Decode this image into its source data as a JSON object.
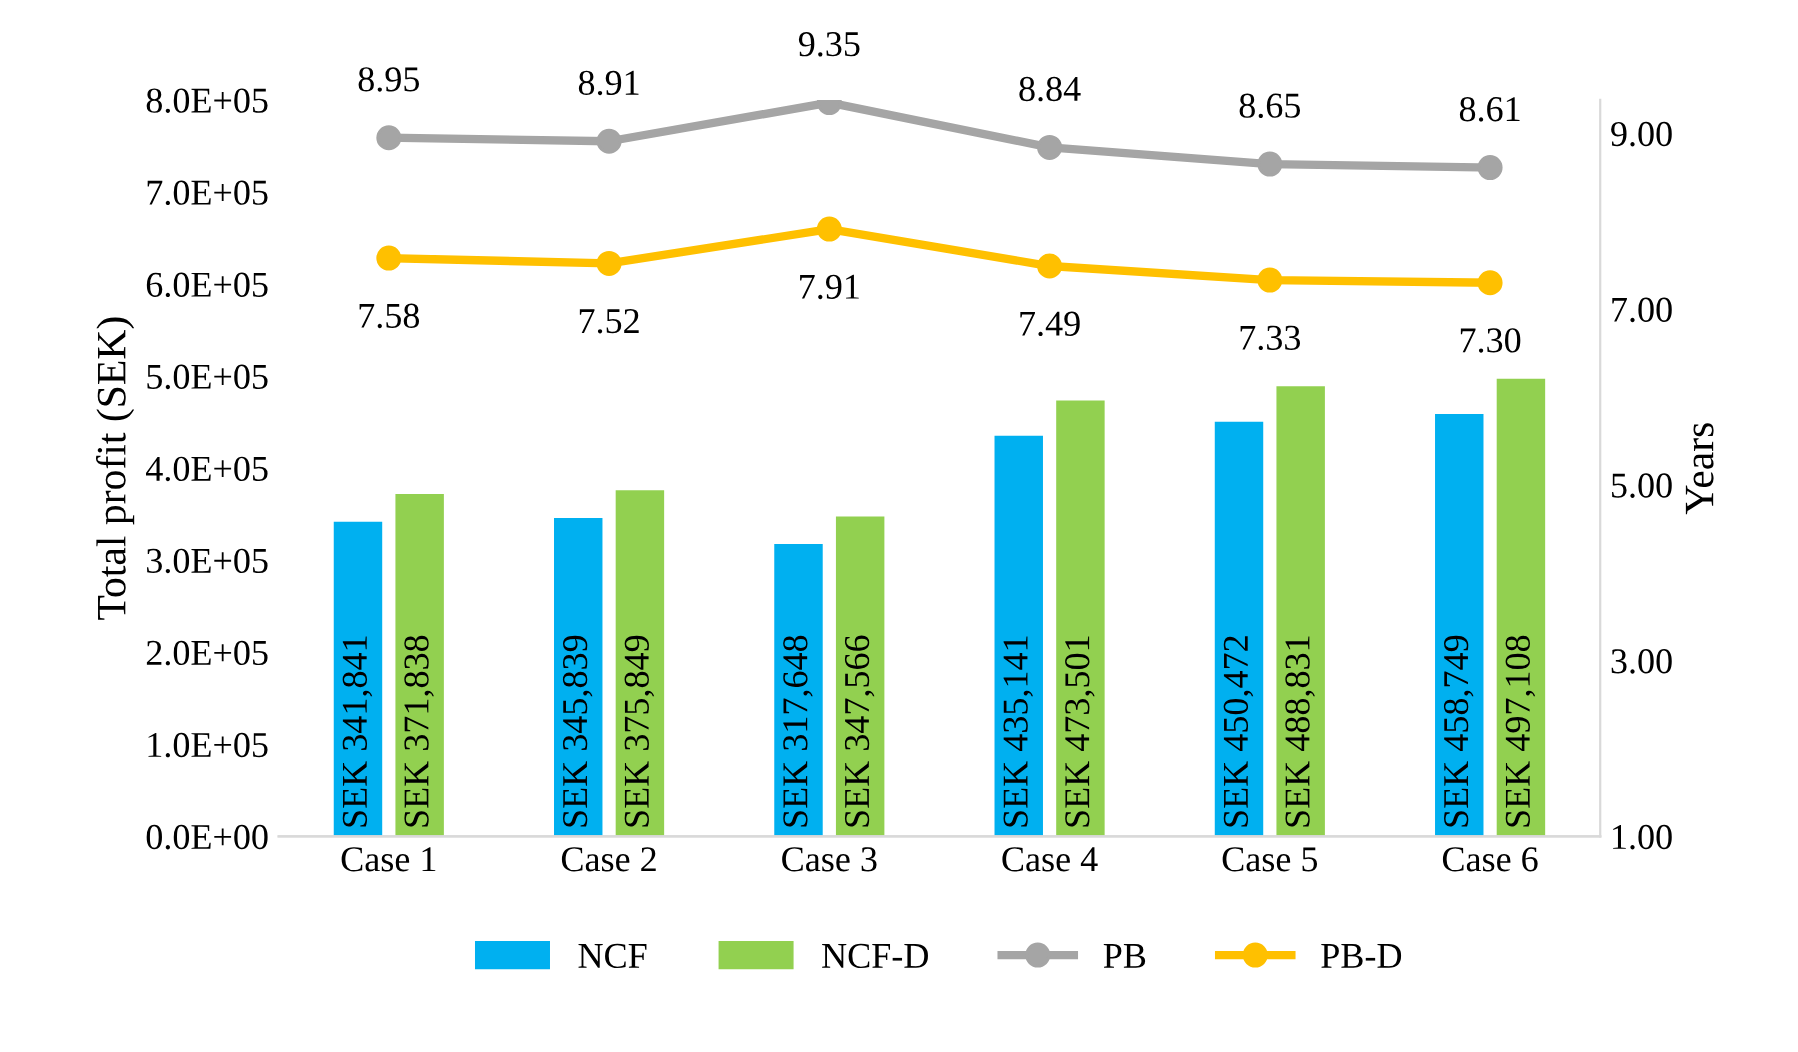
{
  "chart_data": {
    "type": "bar",
    "ylabel": "Total profit (SEK)",
    "y2label": "Years",
    "categories": [
      "Case 1",
      "Case 2",
      "Case 3",
      "Case 4",
      "Case 5",
      "Case 6"
    ],
    "series": [
      {
        "name": "NCF",
        "color": "#00b0f0",
        "values": [
          341841,
          345839,
          317648,
          435141,
          450472,
          458749
        ],
        "value_labels": [
          "SEK 341,841",
          "SEK 345,839",
          "SEK 317,648",
          "SEK 435,141",
          "SEK 450,472",
          "SEK 458,749"
        ]
      },
      {
        "name": "NCF-D",
        "color": "#92d050",
        "values": [
          371838,
          375849,
          347566,
          473501,
          488831,
          497108
        ],
        "value_labels": [
          "SEK 371,838",
          "SEK 375,849",
          "SEK 347,566",
          "SEK 473,501",
          "SEK 488,831",
          "SEK 497,108"
        ]
      },
      {
        "name": "PB",
        "type": "line",
        "axis": "y2",
        "color": "#a5a5a5",
        "values": [
          8.95,
          8.91,
          9.35,
          8.84,
          8.65,
          8.61
        ],
        "value_labels": [
          "8.95",
          "8.91",
          "9.35",
          "8.84",
          "8.65",
          "8.61"
        ]
      },
      {
        "name": "PB-D",
        "type": "line",
        "axis": "y2",
        "color": "#ffc000",
        "values": [
          7.58,
          7.52,
          7.91,
          7.49,
          7.33,
          7.3
        ],
        "value_labels": [
          "7.58",
          "7.52",
          "7.91",
          "7.49",
          "7.33",
          "7.30"
        ]
      }
    ],
    "ylim": [
      0,
      800000
    ],
    "yticks": [
      {
        "value": 0,
        "label": "0.0E+00"
      },
      {
        "value": 100000,
        "label": "1.0E+05"
      },
      {
        "value": 200000,
        "label": "2.0E+05"
      },
      {
        "value": 300000,
        "label": "3.0E+05"
      },
      {
        "value": 400000,
        "label": "4.0E+05"
      },
      {
        "value": 500000,
        "label": "5.0E+05"
      },
      {
        "value": 600000,
        "label": "6.0E+05"
      },
      {
        "value": 700000,
        "label": "7.0E+05"
      },
      {
        "value": 800000,
        "label": "8.0E+05"
      }
    ],
    "y2lim": [
      1,
      9.38
    ],
    "y2ticks": [
      {
        "value": 1,
        "label": "1.00"
      },
      {
        "value": 3,
        "label": "3.00"
      },
      {
        "value": 5,
        "label": "5.00"
      },
      {
        "value": 7,
        "label": "7.00"
      },
      {
        "value": 9,
        "label": "9.00"
      }
    ],
    "marker": "circle",
    "line_style": "solid",
    "grid": false,
    "legend": "bottom"
  }
}
